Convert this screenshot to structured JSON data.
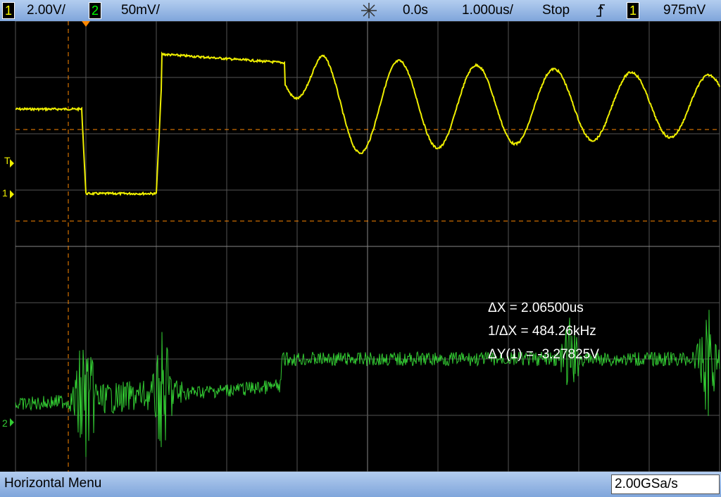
{
  "top_bar": {
    "ch1_label": "1",
    "ch1_scale": "2.00V/",
    "ch2_label": "2",
    "ch2_scale": "50mV/",
    "time_offset": "0.0s",
    "time_scale": "1.000us/",
    "run_state": "Stop",
    "trigger_source": "1",
    "trigger_level": "975mV"
  },
  "markers": {
    "trigger": "T",
    "ch1": "1",
    "ch2": "2"
  },
  "measurements": [
    "ΔX = 2.06500us",
    "1/ΔX = 484.26kHz",
    "ΔY(1) = -3.27825V"
  ],
  "bottom_bar": {
    "menu": "Horizontal Menu",
    "sample_rate": "2.00GSa/s"
  }
}
